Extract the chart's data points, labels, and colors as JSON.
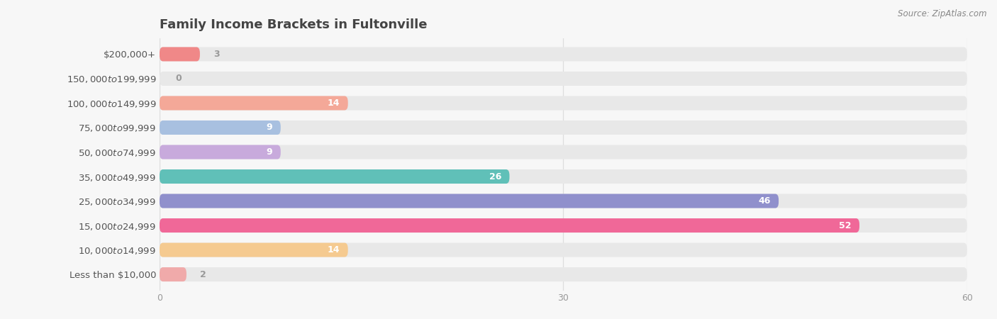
{
  "title": "Family Income Brackets in Fultonville",
  "source": "Source: ZipAtlas.com",
  "categories": [
    "Less than $10,000",
    "$10,000 to $14,999",
    "$15,000 to $24,999",
    "$25,000 to $34,999",
    "$35,000 to $49,999",
    "$50,000 to $74,999",
    "$75,000 to $99,999",
    "$100,000 to $149,999",
    "$150,000 to $199,999",
    "$200,000+"
  ],
  "values": [
    3,
    0,
    14,
    9,
    9,
    26,
    46,
    52,
    14,
    2
  ],
  "bar_colors": [
    "#F08888",
    "#F5C890",
    "#F4A898",
    "#A8C0E0",
    "#C8AADC",
    "#60C0B8",
    "#9090CC",
    "#F06898",
    "#F5CA90",
    "#F0AAAA"
  ],
  "xlim_max": 60,
  "xticks": [
    0,
    30,
    60
  ],
  "bg_color": "#f7f7f7",
  "bar_bg_color": "#e8e8e8",
  "title_color": "#444444",
  "label_color": "#555555",
  "tick_color": "#999999",
  "value_color_inside": "#ffffff",
  "value_color_outside": "#999999",
  "grid_color": "#dddddd",
  "title_fontsize": 13,
  "label_fontsize": 9.5,
  "value_fontsize": 9,
  "tick_fontsize": 9
}
